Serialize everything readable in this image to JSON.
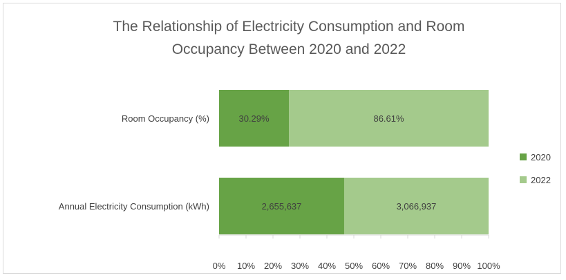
{
  "chart_data": {
    "type": "bar",
    "orientation": "horizontal",
    "stacking": "percent",
    "title": "The Relationship of Electricity Consumption and Room\nOccupancy Between 2020 and 2022",
    "categories": [
      "Room Occupancy (%)",
      "Annual Electricity Consumption (kWh)"
    ],
    "series": [
      {
        "name": "2020",
        "values": [
          30.29,
          2655637
        ],
        "labels": [
          "30.29%",
          "2,655,637"
        ]
      },
      {
        "name": "2022",
        "values": [
          86.61,
          3066937
        ],
        "labels": [
          "86.61%",
          "3,066,937"
        ]
      }
    ],
    "xlim": [
      0,
      100
    ],
    "xticks": [
      "0%",
      "10%",
      "20%",
      "30%",
      "40%",
      "50%",
      "60%",
      "70%",
      "80%",
      "90%",
      "100%"
    ],
    "legend": "right",
    "grid": false,
    "colors": {
      "2020": "#67a346",
      "2022": "#a4ca8c",
      "text": "#404040",
      "axis": "#d9d9d9"
    }
  }
}
